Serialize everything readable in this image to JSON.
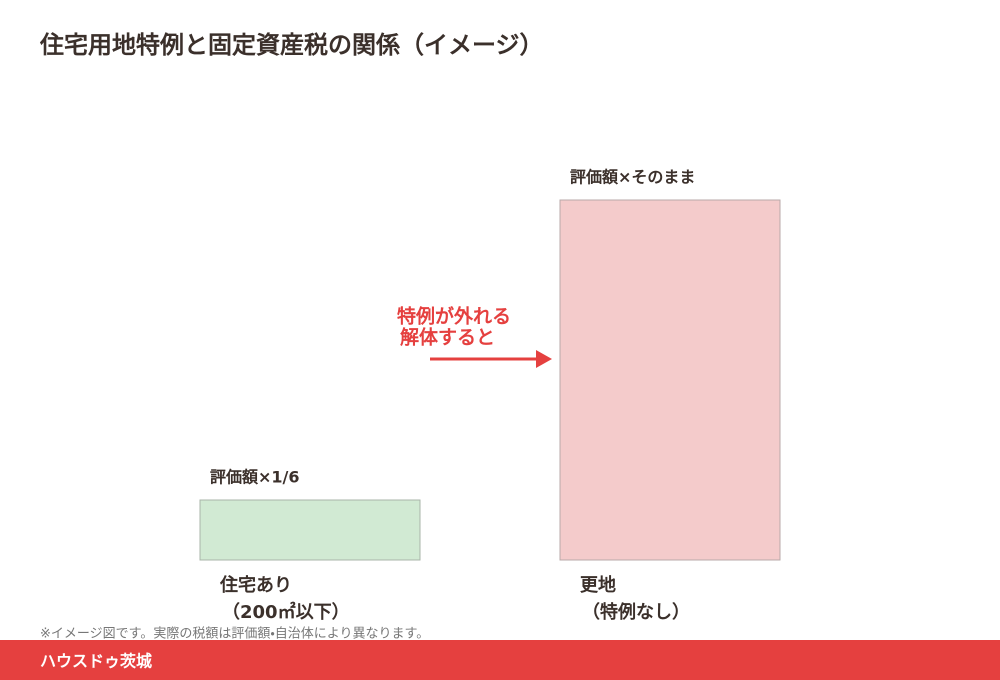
{
  "title": "住宅用地特例と固定資産税の関係（イメージ）",
  "bars": [
    {
      "caption": "評価額×1/6",
      "label_lines": [
        "住宅あり",
        "（200㎡以下）"
      ]
    },
    {
      "caption": "評価額×そのまま",
      "label_lines": [
        "更地",
        "（特例なし）"
      ]
    }
  ],
  "arrow_label_lines": [
    "特例が外れる",
    "解体すると"
  ],
  "note": "※イメージ図です。実際の税額は評価額・自治体により異なります。",
  "footer": "ハウスドゥ茨城"
}
